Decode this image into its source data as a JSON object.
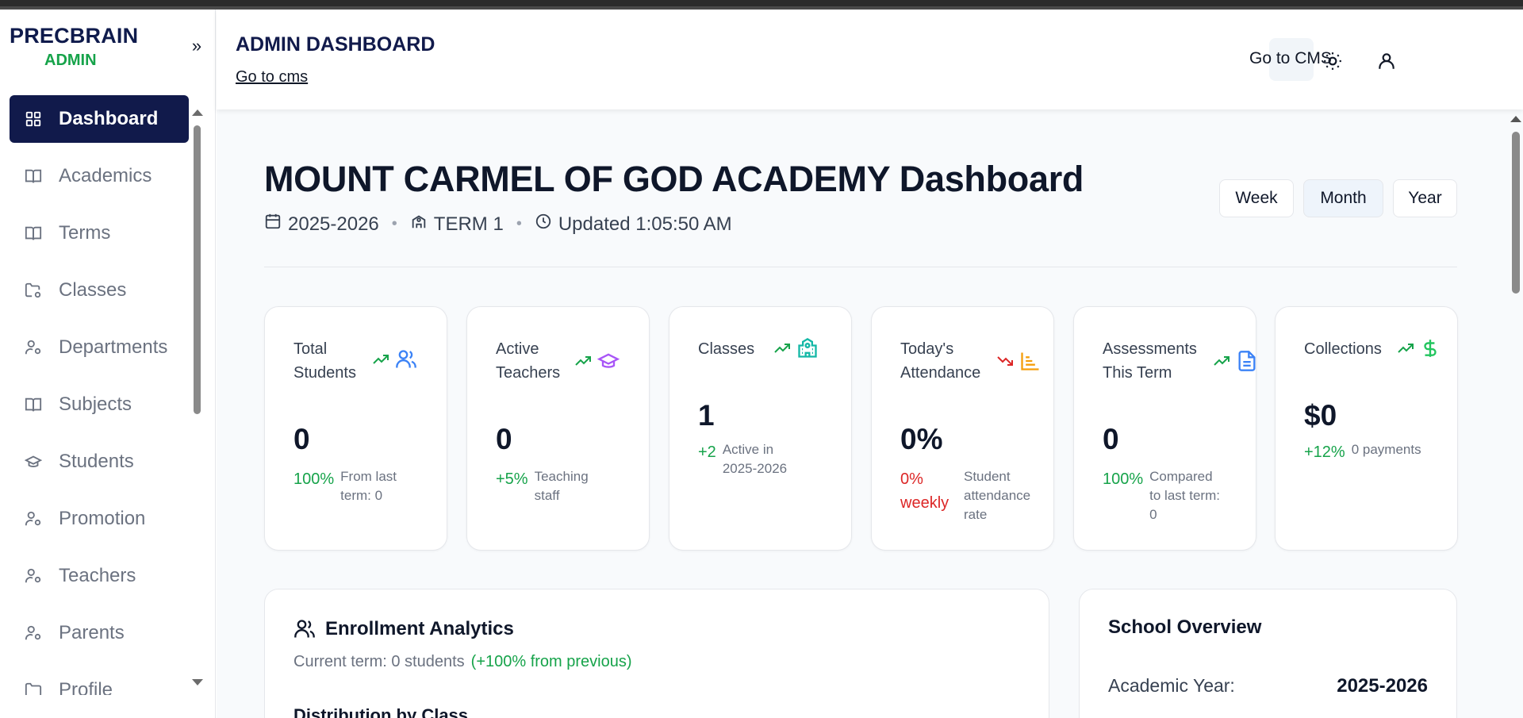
{
  "sidebar": {
    "brand": "PRECBRAIN",
    "brand_sub": "ADMIN",
    "collapse_icon": "chevrons-right-icon",
    "items": [
      {
        "label": "Dashboard",
        "icon": "grid-icon",
        "active": true
      },
      {
        "label": "Academics",
        "icon": "book-open-icon"
      },
      {
        "label": "Terms",
        "icon": "book-open-icon"
      },
      {
        "label": "Classes",
        "icon": "folder-cog-icon"
      },
      {
        "label": "Departments",
        "icon": "user-cog-icon"
      },
      {
        "label": "Subjects",
        "icon": "book-open-icon"
      },
      {
        "label": "Students",
        "icon": "graduation-cap-icon"
      },
      {
        "label": "Promotion",
        "icon": "user-cog-icon"
      },
      {
        "label": "Teachers",
        "icon": "user-cog-icon"
      },
      {
        "label": "Parents",
        "icon": "user-cog-icon"
      },
      {
        "label": "Profile",
        "icon": "folder-icon"
      }
    ]
  },
  "header": {
    "title": "ADMIN DASHBOARD",
    "link": "Go to cms",
    "cms_button": "Go to CMS",
    "theme_icon": "sun-icon",
    "user_icon": "user-icon"
  },
  "dashboard": {
    "title": "MOUNT CARMEL OF GOD ACADEMY Dashboard",
    "year": "2025-2026",
    "term": "TERM 1",
    "updated": "Updated 1:05:50 AM",
    "periods": [
      "Week",
      "Month",
      "Year"
    ],
    "active_period": "Month"
  },
  "stats": [
    {
      "label": "Total Students",
      "trend": "up",
      "icon": "users-icon",
      "icon_color": "#3b82f6",
      "value": "0",
      "delta": "100%",
      "delta_color": "green",
      "note": "From last term: 0"
    },
    {
      "label": "Active Teachers",
      "trend": "up",
      "icon": "graduation-cap-icon",
      "icon_color": "#a855f7",
      "value": "0",
      "delta": "+5%",
      "delta_color": "green",
      "note": "Teaching staff"
    },
    {
      "label": "Classes",
      "trend": "up",
      "icon": "school-icon",
      "icon_color": "#14b8a6",
      "value": "1",
      "delta": "+2",
      "delta_color": "green",
      "note": "Active in 2025-2026"
    },
    {
      "label": "Today's Attendance",
      "trend": "down",
      "icon": "bar-chart-icon",
      "icon_color": "#f59e0b",
      "value": "0%",
      "delta": "0% weekly",
      "delta_color": "red",
      "note": "Student attendance rate"
    },
    {
      "label": "Assessments This Term",
      "trend": "up",
      "icon": "file-text-icon",
      "icon_color": "#3b82f6",
      "value": "0",
      "delta": "100%",
      "delta_color": "green",
      "note": "Compared to last term: 0"
    },
    {
      "label": "Collections",
      "trend": "up",
      "icon": "dollar-icon",
      "icon_color": "#22c55e",
      "value": "$0",
      "delta": "+12%",
      "delta_color": "green",
      "note": "0 payments"
    }
  ],
  "enrollment": {
    "title": "Enrollment Analytics",
    "icon": "users-icon",
    "current": "Current term: 0 students",
    "change": "(+100% from previous)",
    "distribution_title": "Distribution by Class"
  },
  "overview": {
    "title": "School Overview",
    "academic_year_label": "Academic Year:",
    "academic_year_value": "2025-2026"
  }
}
